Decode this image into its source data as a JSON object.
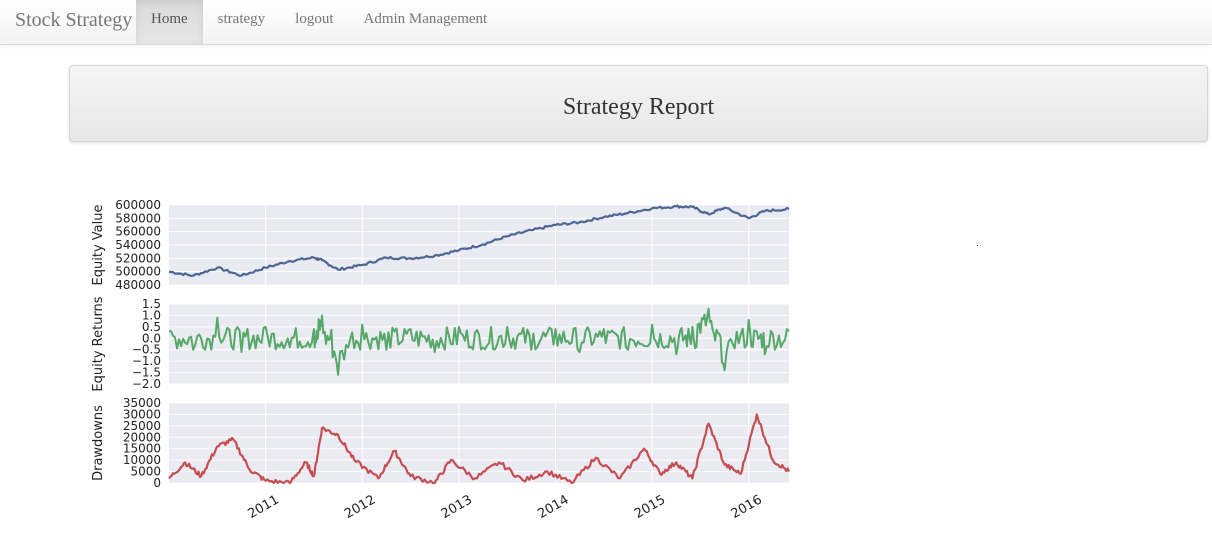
{
  "navbar": {
    "brand": "Stock Strategy",
    "items": [
      {
        "label": "Home",
        "active": true
      },
      {
        "label": "strategy",
        "active": false
      },
      {
        "label": "logout",
        "active": false
      },
      {
        "label": "Admin Management",
        "active": false
      }
    ]
  },
  "report": {
    "title": "Strategy Report"
  },
  "chart_data": {
    "type": "line",
    "title": "",
    "x_range": [
      "2010-01",
      "2016-06"
    ],
    "x_ticks": [
      "2011",
      "2012",
      "2013",
      "2014",
      "2015",
      "2016"
    ],
    "grid": true,
    "background_color": "#EAEAF2",
    "panels": [
      {
        "ylabel": "Equity Value",
        "ylim": [
          480000,
          600000
        ],
        "yticks": [
          "480000",
          "500000",
          "520000",
          "540000",
          "560000",
          "580000",
          "600000"
        ],
        "series": [
          {
            "color": "#4C6794",
            "x": [
              "2010-01",
              "2010-04",
              "2010-07",
              "2010-10",
              "2011-01",
              "2011-04",
              "2011-07",
              "2011-08",
              "2011-10",
              "2012-01",
              "2012-04",
              "2012-07",
              "2012-10",
              "2013-01",
              "2013-04",
              "2013-07",
              "2013-10",
              "2014-01",
              "2014-04",
              "2014-07",
              "2014-10",
              "2015-01",
              "2015-04",
              "2015-06",
              "2015-08",
              "2015-10",
              "2016-01",
              "2016-03",
              "2016-06"
            ],
            "y": [
              500000,
              494000,
              506000,
              494000,
              506000,
              516000,
              521000,
              517000,
              503000,
              510000,
              521000,
              520000,
              524000,
              532000,
              541000,
              553000,
              562000,
              570000,
              574000,
              582000,
              588000,
              595000,
              598000,
              597000,
              586000,
              596000,
              580000,
              591000,
              594000
            ]
          }
        ]
      },
      {
        "ylabel": "Equity Returns",
        "ylim": [
          -2.0,
          1.5
        ],
        "yticks": [
          "−2.0",
          "−1.5",
          "−1.0",
          "−0.5",
          "0.0",
          "0.5",
          "1.0",
          "1.5"
        ],
        "series": [
          {
            "color": "#55A868",
            "x": [
              "2010-01",
              "2010-04",
              "2010-07",
              "2010-10",
              "2011-01",
              "2011-04",
              "2011-07",
              "2011-08",
              "2011-10",
              "2012-01",
              "2012-04",
              "2012-07",
              "2012-10",
              "2013-01",
              "2013-04",
              "2013-07",
              "2013-10",
              "2014-01",
              "2014-04",
              "2014-07",
              "2014-10",
              "2015-01",
              "2015-04",
              "2015-06",
              "2015-08",
              "2015-10",
              "2016-01",
              "2016-03",
              "2016-06"
            ],
            "y": [
              0.3,
              -0.5,
              0.9,
              -0.6,
              0.5,
              -0.4,
              0.4,
              1.0,
              -1.6,
              0.6,
              -0.5,
              0.4,
              -0.6,
              0.5,
              -0.4,
              0.5,
              -0.5,
              0.4,
              -0.6,
              0.4,
              -0.5,
              0.6,
              -0.7,
              0.5,
              1.3,
              -1.4,
              0.8,
              -0.7,
              0.3
            ]
          }
        ]
      },
      {
        "ylabel": "Drawdowns",
        "ylim": [
          0,
          35000
        ],
        "yticks": [
          "0",
          "5000",
          "10000",
          "15000",
          "20000",
          "25000",
          "30000",
          "35000"
        ],
        "series": [
          {
            "color": "#C44E52",
            "x": [
              "2010-01",
              "2010-03",
              "2010-05",
              "2010-07",
              "2010-09",
              "2010-11",
              "2011-01",
              "2011-04",
              "2011-06",
              "2011-07",
              "2011-08",
              "2011-10",
              "2011-12",
              "2012-03",
              "2012-05",
              "2012-07",
              "2012-10",
              "2012-12",
              "2013-03",
              "2013-06",
              "2013-09",
              "2013-12",
              "2014-03",
              "2014-06",
              "2014-09",
              "2014-12",
              "2015-02",
              "2015-04",
              "2015-06",
              "2015-08",
              "2015-10",
              "2015-12",
              "2016-02",
              "2016-04",
              "2016-06"
            ],
            "y": [
              2000,
              9000,
              3000,
              16000,
              19000,
              6000,
              1000,
              0,
              9000,
              3000,
              24000,
              21000,
              10000,
              2000,
              14000,
              3000,
              0,
              10000,
              2000,
              9000,
              1000,
              5000,
              0,
              11000,
              2000,
              15000,
              4000,
              9000,
              2000,
              26000,
              8000,
              4000,
              30000,
              10000,
              5000
            ]
          }
        ]
      }
    ]
  }
}
